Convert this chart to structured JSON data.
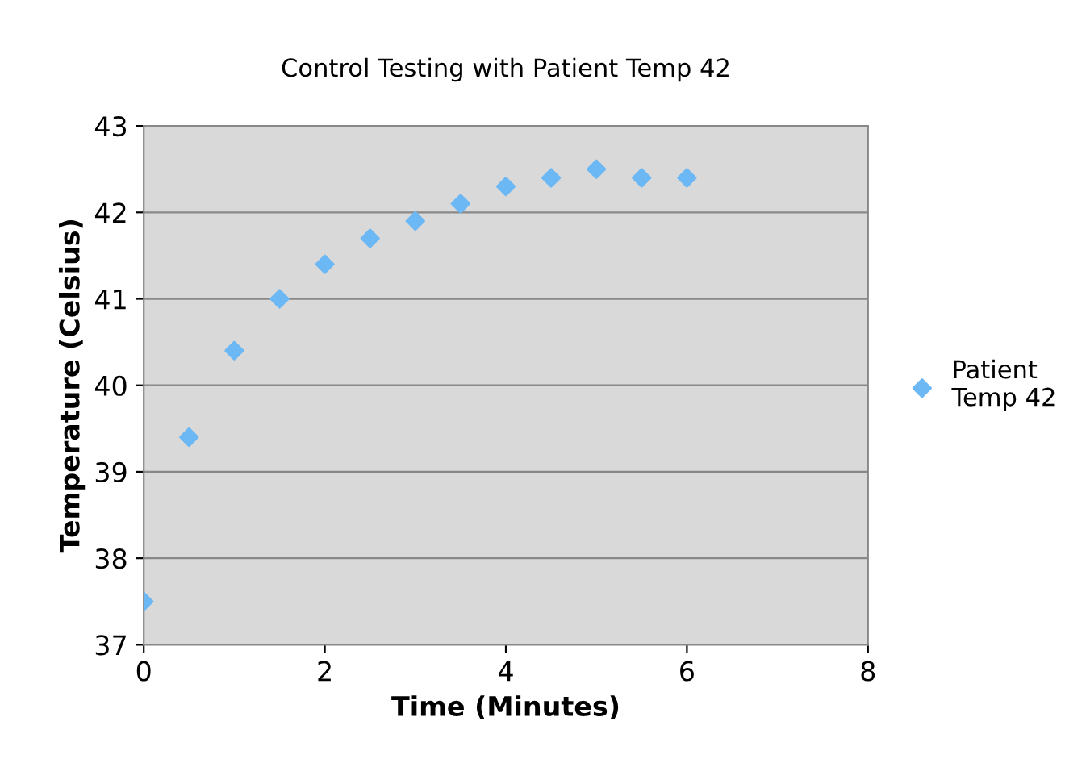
{
  "chart_data": {
    "type": "scatter",
    "title": "Control Testing with Patient Temp 42",
    "xlabel": "Time (Minutes)",
    "ylabel": "Temperature (Celsius)",
    "x": [
      0,
      0.5,
      1,
      1.5,
      2,
      2.5,
      3,
      3.5,
      4,
      4.5,
      5,
      5.5,
      6
    ],
    "series": [
      {
        "name": "Patient Temp 42",
        "color": "#6cb8f5",
        "values": [
          37.5,
          39.4,
          40.4,
          41.0,
          41.4,
          41.7,
          41.9,
          42.1,
          42.3,
          42.4,
          42.5,
          42.4,
          42.4
        ]
      }
    ],
    "xlim": [
      0,
      8
    ],
    "xticks": [
      0,
      2,
      4,
      6,
      8
    ],
    "ylim": [
      37,
      43
    ],
    "yticks": [
      37,
      38,
      39,
      40,
      41,
      42,
      43
    ],
    "grid": "y",
    "legend": "right",
    "marker": "diamond"
  }
}
